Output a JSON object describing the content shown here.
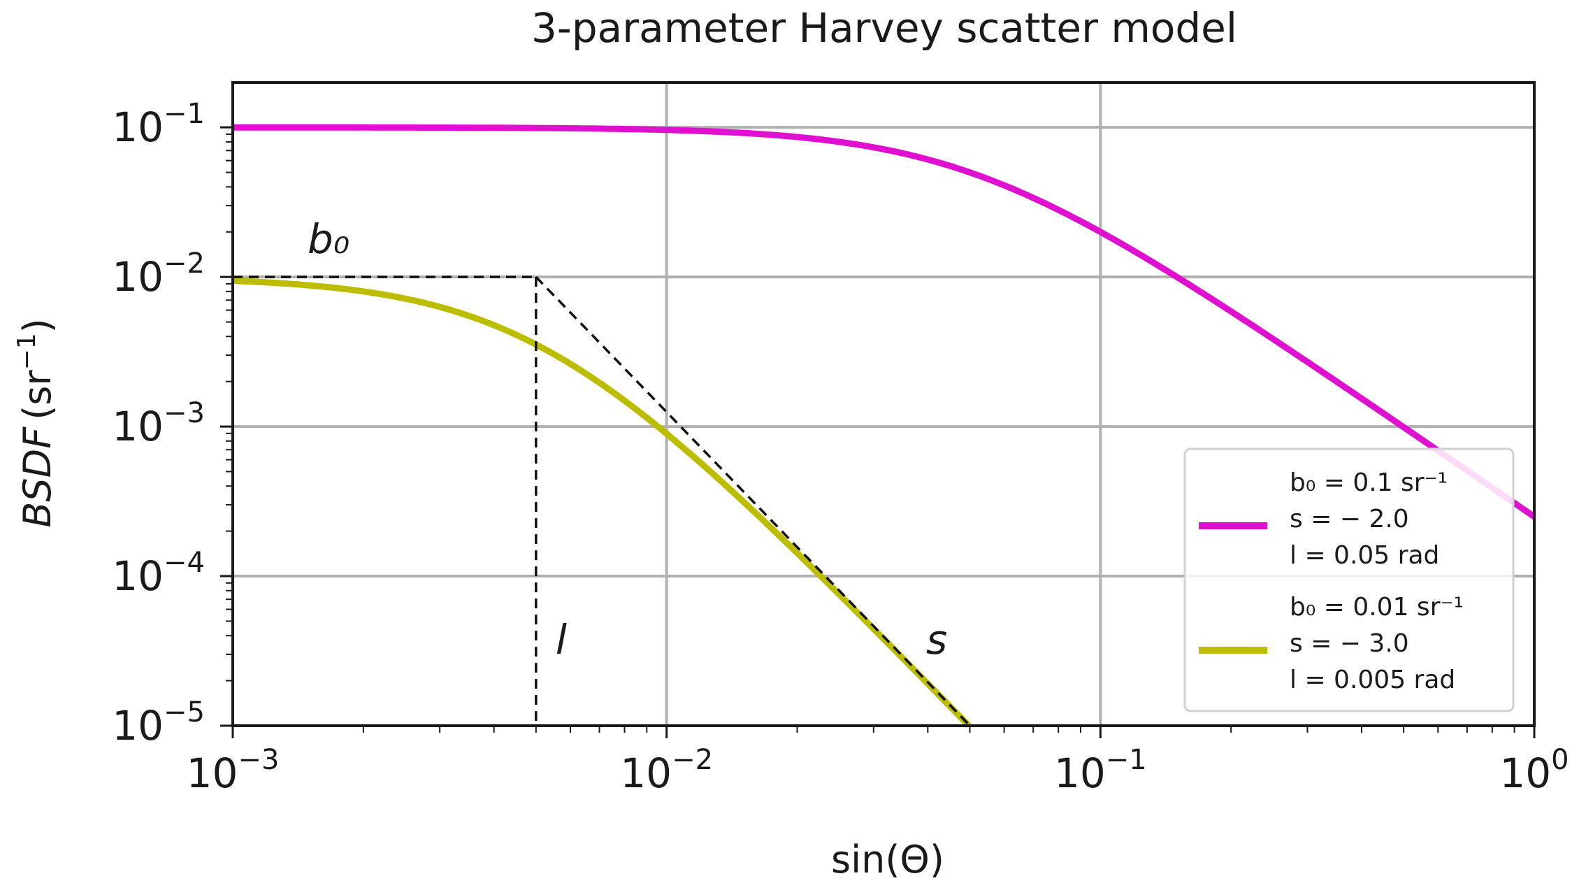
{
  "chart_data": {
    "type": "line",
    "title": "3-parameter Harvey scatter model",
    "xlabel": "sin(Θ)",
    "ylabel": {
      "italic": "BSDF",
      "unit": "(sr",
      "unit_exp": "−1",
      "unit_close": ")"
    },
    "xscale": "log",
    "yscale": "log",
    "xlim": [
      0.001,
      1
    ],
    "ylim": [
      1e-05,
      0.1
    ],
    "grid": true,
    "legend_position": "lower-right",
    "x_ticks": [
      {
        "value": 0.001,
        "base": "10",
        "exp": "−3"
      },
      {
        "value": 0.01,
        "base": "10",
        "exp": "−2"
      },
      {
        "value": 0.1,
        "base": "10",
        "exp": "−1"
      },
      {
        "value": 1,
        "base": "10",
        "exp": "0"
      }
    ],
    "y_ticks": [
      {
        "value": 0.1,
        "base": "10",
        "exp": "−1"
      },
      {
        "value": 0.01,
        "base": "10",
        "exp": "−2"
      },
      {
        "value": 0.001,
        "base": "10",
        "exp": "−3"
      },
      {
        "value": 0.0001,
        "base": "10",
        "exp": "−4"
      },
      {
        "value": 1e-05,
        "base": "10",
        "exp": "−5"
      }
    ],
    "series": [
      {
        "b0": 0.1,
        "s": -2.0,
        "l": 0.05,
        "color": "#e010d0",
        "legend_lines": [
          "b₀ = 0.1 sr⁻¹",
          "s = − 2.0",
          "l = 0.05 rad"
        ]
      },
      {
        "b0": 0.01,
        "s": -3.0,
        "l": 0.005,
        "color": "#bdbd00",
        "legend_lines": [
          "b₀ = 0.01 sr⁻¹",
          "s = − 3.0",
          "l = 0.005 rad"
        ]
      }
    ],
    "annotations": {
      "b0_label": "b₀",
      "l_label": "l",
      "s_label": "s",
      "guide_plateau": 0.01,
      "guide_knee_x": 0.005,
      "guide_slope": -3.0
    }
  }
}
